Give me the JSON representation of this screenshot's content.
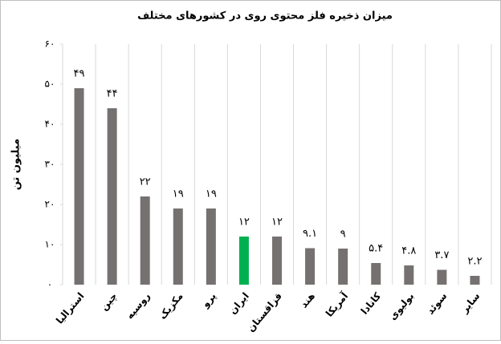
{
  "chart_data": {
    "type": "bar",
    "title": "میزان ذخیره فلز محتوی روی در کشورهای مختلف",
    "y_label": "میلیون تن",
    "categories": [
      "استرالیا",
      "چین",
      "روسیه",
      "مکزیک",
      "پرو",
      "ایران",
      "قزاقستان",
      "هند",
      "آمریکا",
      "کانادا",
      "بولیوی",
      "سوئد",
      "سایر"
    ],
    "values": [
      49,
      44,
      22,
      19,
      19,
      12,
      12,
      9.1,
      9,
      5.4,
      4.8,
      3.7,
      2.2
    ],
    "value_labels": [
      "۴۹",
      "۴۴",
      "۲۲",
      "۱۹",
      "۱۹",
      "۱۲",
      "۱۲",
      "۹.۱",
      "۹",
      "۵.۴",
      "۴.۸",
      "۳.۷",
      "۲.۲"
    ],
    "colors": [
      "#767171",
      "#767171",
      "#767171",
      "#767171",
      "#767171",
      "#00b050",
      "#767171",
      "#767171",
      "#767171",
      "#767171",
      "#767171",
      "#767171",
      "#767171"
    ],
    "ylim": [
      0,
      60
    ],
    "yticks": [
      {
        "value": 0,
        "label": "۰"
      },
      {
        "value": 10,
        "label": "۱۰"
      },
      {
        "value": 20,
        "label": "۲۰"
      },
      {
        "value": 30,
        "label": "۳۰"
      },
      {
        "value": 40,
        "label": "۴۰"
      },
      {
        "value": 50,
        "label": "۵۰"
      },
      {
        "value": 60,
        "label": "۶۰"
      }
    ],
    "vertical_grid": true
  }
}
